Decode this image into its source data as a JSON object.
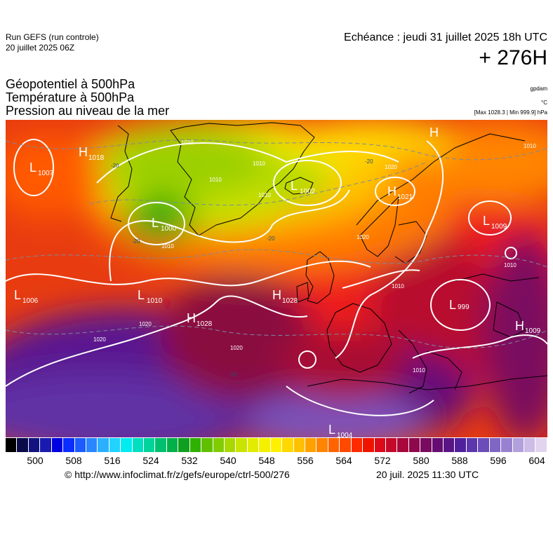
{
  "header": {
    "run": "Run GEFS (run controle)",
    "run_date": "20 juillet 2025 06Z",
    "valid": "Echéance : jeudi 31 juillet 2025 18h UTC",
    "lead": "+ 276H",
    "fields": [
      "Géopotentiel à 500hPa",
      "Température à 500hPa",
      "Pression au niveau de la mer"
    ],
    "unit_geo": "gpdam",
    "unit_temp": "°C",
    "minmax": "[Max 1028.3 | Min 999.9] hPa"
  },
  "map": {
    "pressure_centers": [
      {
        "type": "H",
        "value": "1018"
      },
      {
        "type": "L",
        "value": "1007"
      },
      {
        "type": "L",
        "value": "1000"
      },
      {
        "type": "L",
        "value": "1002"
      },
      {
        "type": "H",
        "value": "1021"
      },
      {
        "type": "L",
        "value": "1009"
      },
      {
        "type": "L",
        "value": "1006"
      },
      {
        "type": "L",
        "value": "1010"
      },
      {
        "type": "H",
        "value": "1028"
      },
      {
        "type": "H",
        "value": "1028"
      },
      {
        "type": "L",
        "value": "999"
      },
      {
        "type": "H",
        "value": "1009"
      },
      {
        "type": "L",
        "value": "1004"
      },
      {
        "type": "H",
        "value": ""
      }
    ],
    "isobar_labels": [
      "1010",
      "1010",
      "1010",
      "1020",
      "1020",
      "1020",
      "1010",
      "1020",
      "1010",
      "1010",
      "1010",
      "1010",
      "1020",
      "1010"
    ],
    "isotherm_labels": [
      "-20",
      "-20",
      "-20",
      "-20",
      "-10"
    ]
  },
  "colorbar": {
    "ticks": [
      "500",
      "508",
      "516",
      "524",
      "532",
      "540",
      "548",
      "556",
      "564",
      "572",
      "580",
      "588",
      "596",
      "604"
    ],
    "colors": [
      "#000000",
      "#0b0b4a",
      "#131380",
      "#1a1ab0",
      "#0000e0",
      "#0b2dff",
      "#1c5cff",
      "#2a86ff",
      "#2ab0ff",
      "#20d4ff",
      "#00ecf0",
      "#00e0c0",
      "#00d49a",
      "#00c070",
      "#00b048",
      "#10a020",
      "#30b000",
      "#60c000",
      "#80cc00",
      "#a8d800",
      "#c8e400",
      "#e2ec00",
      "#f4f000",
      "#fff000",
      "#ffd800",
      "#ffc000",
      "#ffa000",
      "#ff8400",
      "#ff6400",
      "#ff4800",
      "#ff2a00",
      "#f01400",
      "#dc0a1a",
      "#c40a2a",
      "#a8083c",
      "#8e084e",
      "#780a60",
      "#660c72",
      "#5a1484",
      "#50209c",
      "#5c36ac",
      "#6c4cb8",
      "#8066c4",
      "#9882d0",
      "#b2a0dc",
      "#ccbce6",
      "#e2d4ee"
    ]
  },
  "footer": {
    "credit": "© http://www.infoclimat.fr/z/gefs/europe/ctrl-500/276",
    "issued": "20 juil. 2025 11:30 UTC"
  }
}
